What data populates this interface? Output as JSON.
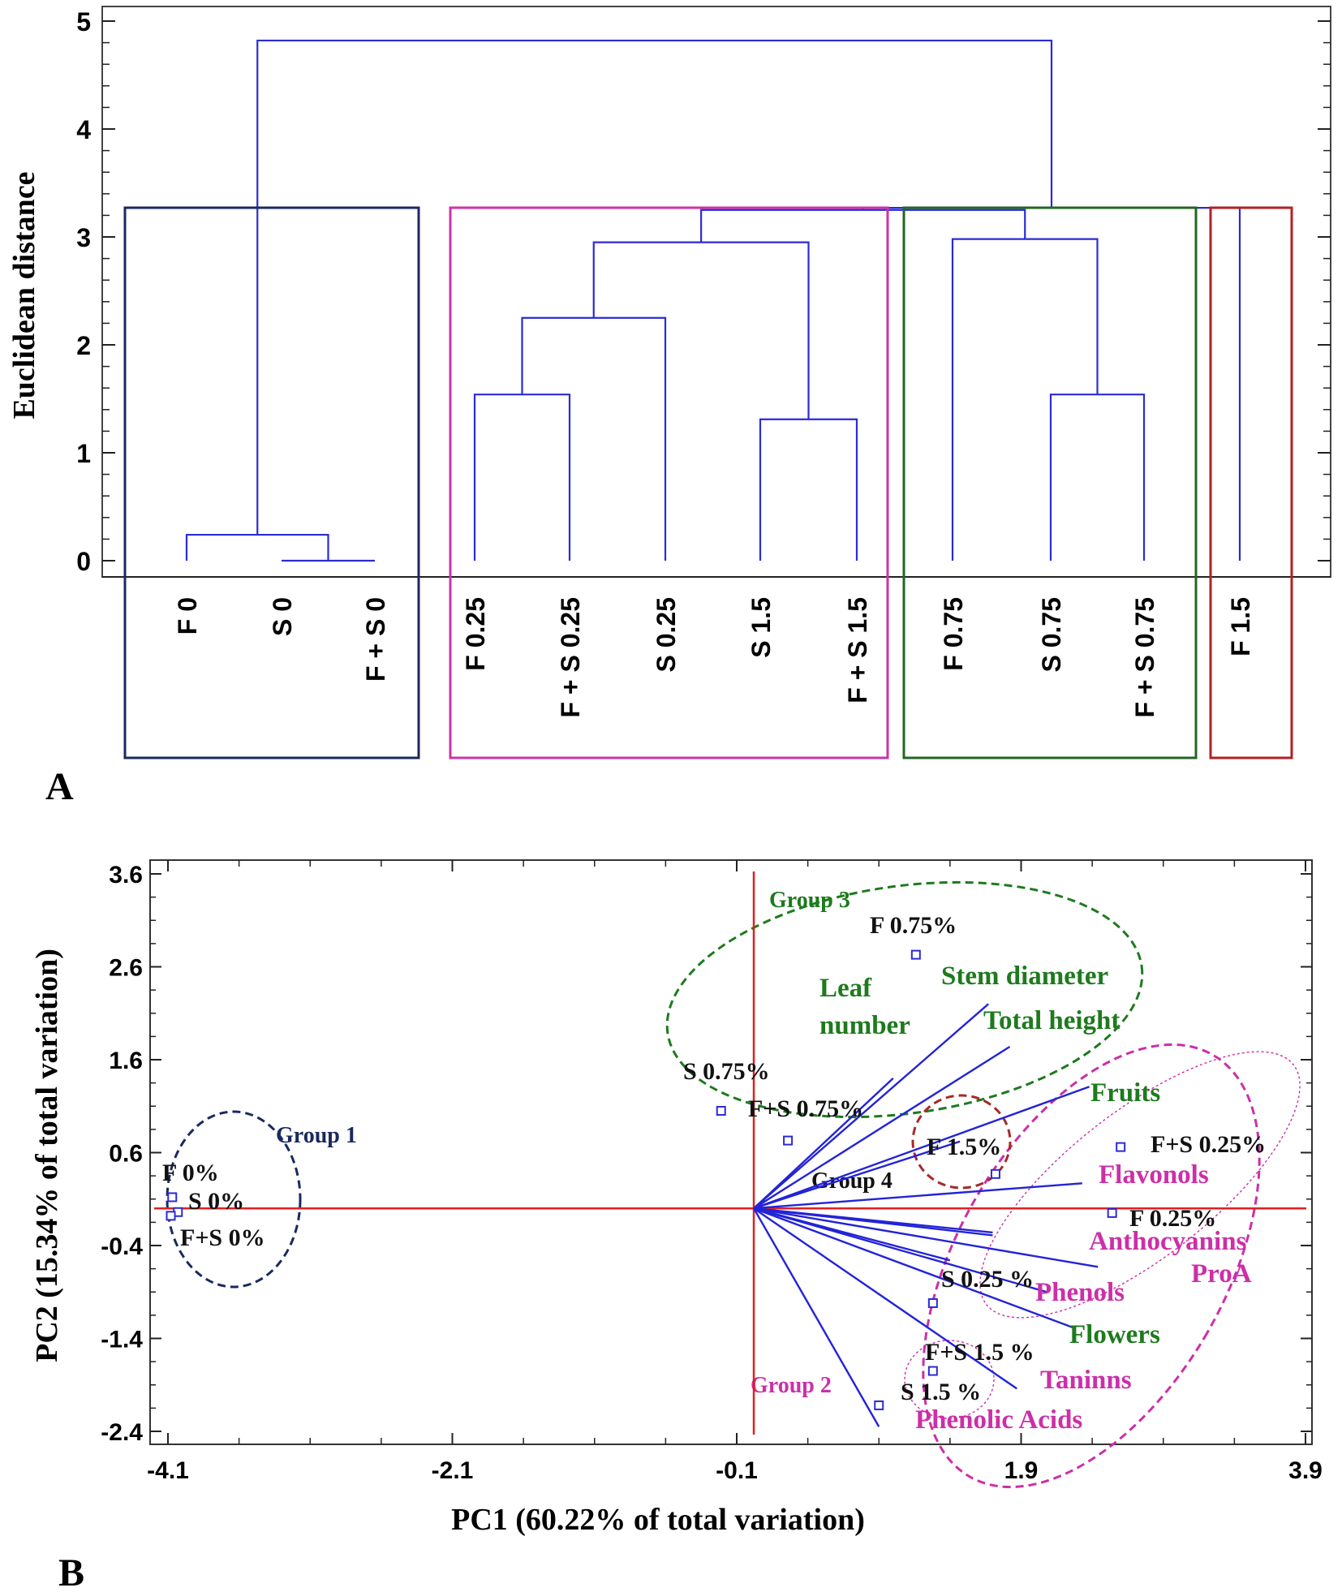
{
  "chart_data": [
    {
      "type": "dendrogram",
      "panel_label": "A",
      "ylabel": "Euclidean distance",
      "ylim": [
        0,
        5
      ],
      "y_ticks": [
        "0",
        "1",
        "2",
        "3",
        "4",
        "5"
      ],
      "leaves": [
        "F 0",
        "S 0",
        "F + S 0",
        "F 0.25",
        "F + S 0.25",
        "S 0.25",
        "S 1.5",
        "F + S 1.5",
        "F 0.75",
        "S 0.75",
        "F + S 0.75",
        "F 1.5"
      ],
      "merges": [
        {
          "members": [
            "S 0",
            "F + S 0"
          ],
          "height": 0.0
        },
        {
          "members": [
            "F 0",
            "S 0 | F + S 0"
          ],
          "height": 0.24
        },
        {
          "members": [
            "F 0.25",
            "F + S 0.25"
          ],
          "height": 1.54
        },
        {
          "members": [
            "S 1.5",
            "F + S 1.5"
          ],
          "height": 1.31
        },
        {
          "members": [
            "F 0.25 | F + S 0.25",
            "S 0.25"
          ],
          "height": 2.25
        },
        {
          "members": [
            "F 0.25 | F + S 0.25 | S 0.25",
            "S 1.5 | F + S 1.5"
          ],
          "height": 2.95
        },
        {
          "members": [
            "S 0.75",
            "F + S 0.75"
          ],
          "height": 1.54
        },
        {
          "members": [
            "F 0.75",
            "S 0.75 | F + S 0.75"
          ],
          "height": 2.98
        },
        {
          "members": [
            "group 2",
            "group 3"
          ],
          "height": 3.25
        },
        {
          "members": [
            "group 2 | group 3",
            "F 1.5"
          ],
          "height": 3.27
        },
        {
          "members": [
            "group 1",
            "rest"
          ],
          "height": 4.82
        }
      ],
      "cluster_boxes": [
        {
          "leaves": [
            "F 0",
            "S 0",
            "F + S 0"
          ],
          "color": "#1a2a5e"
        },
        {
          "leaves": [
            "F 0.25",
            "F + S 0.25",
            "S 0.25",
            "S 1.5",
            "F + S 1.5"
          ],
          "color": "#cc33aa"
        },
        {
          "leaves": [
            "F 0.75",
            "S 0.75",
            "F + S 0.75"
          ],
          "color": "#226622"
        },
        {
          "leaves": [
            "F 1.5"
          ],
          "color": "#b22222"
        }
      ],
      "line_color": "#2b2bd6"
    },
    {
      "type": "scatter",
      "panel_label": "B",
      "xlabel": "PC1 (60.22% of total variation)",
      "ylabel": "PC2 (15.34% of total variation)",
      "xlim": [
        -4.1,
        3.9
      ],
      "ylim": [
        -2.4,
        3.6
      ],
      "x_ticks": [
        "-4.1",
        "-2.1",
        "-0.1",
        "1.9",
        "3.9"
      ],
      "y_ticks": [
        "3.6",
        "2.6",
        "1.6",
        "0.6",
        "-0.4",
        "-1.4",
        "-2.4"
      ],
      "points": [
        {
          "label": "F 0%",
          "x": -4.07,
          "y": 0.12
        },
        {
          "label": "S 0%",
          "x": -4.03,
          "y": -0.04
        },
        {
          "label": "F+S 0%",
          "x": -4.08,
          "y": -0.08
        },
        {
          "label": "F 0.75%",
          "x": 1.16,
          "y": 2.73
        },
        {
          "label": "S 0.75%",
          "x": -0.21,
          "y": 1.05
        },
        {
          "label": "F+S 0.75%",
          "x": 0.26,
          "y": 0.73
        },
        {
          "label": "F 1.5%",
          "x": 1.72,
          "y": 0.37
        },
        {
          "label": "F+S 0.25%",
          "x": 2.6,
          "y": 0.66
        },
        {
          "label": "F 0.25%",
          "x": 2.54,
          "y": -0.05
        },
        {
          "label": "S 0.25 %",
          "x": 1.28,
          "y": -1.02
        },
        {
          "label": "F+S 1.5 %",
          "x": 1.28,
          "y": -1.75
        },
        {
          "label": "S 1.5 %",
          "x": 0.9,
          "y": -2.12
        }
      ],
      "loadings": [
        {
          "label": "Stem diameter",
          "x": 1.67,
          "y": 2.2,
          "color": "#1e7a1e"
        },
        {
          "label": "Total height",
          "x": 1.82,
          "y": 1.74,
          "color": "#1e7a1e"
        },
        {
          "label": "Leaf number",
          "x": 1.0,
          "y": 1.4,
          "color": "#1e7a1e"
        },
        {
          "label": "Fruits",
          "x": 2.38,
          "y": 1.31,
          "color": "#1e7a1e"
        },
        {
          "label": "Flavonols",
          "x": 2.33,
          "y": 0.27,
          "color": "#cc2fa8"
        },
        {
          "label": "Anthocyanins",
          "x": 1.7,
          "y": -0.29,
          "color": "#cc2fa8"
        },
        {
          "label": "ProA",
          "x": 2.44,
          "y": -0.63,
          "color": "#cc2fa8"
        },
        {
          "label": "Phenols",
          "x": 2.08,
          "y": -0.9,
          "color": "#cc2fa8"
        },
        {
          "label": "Flowers",
          "x": 2.26,
          "y": -1.28,
          "color": "#1e7a1e"
        },
        {
          "label": "Taninns",
          "x": 1.87,
          "y": -1.94,
          "color": "#cc2fa8"
        },
        {
          "label": "Phenolic Acids",
          "x": 0.9,
          "y": -2.35,
          "color": "#cc2fa8"
        }
      ],
      "groups": [
        {
          "label": "Group 1",
          "color": "#1a2a5e"
        },
        {
          "label": "Group 2",
          "color": "#cc2fa8"
        },
        {
          "label": "Group 3",
          "color": "#1e7a1e"
        },
        {
          "label": "Group 4",
          "color": "#111111"
        }
      ],
      "axis_line_color": "#e02020",
      "point_color": "#2b2bd6"
    }
  ]
}
